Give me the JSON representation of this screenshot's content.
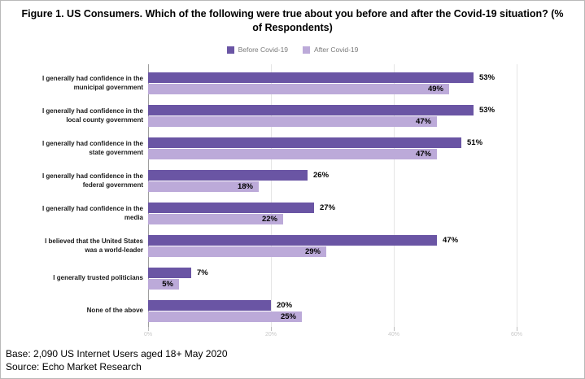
{
  "figure": {
    "title": "Figure 1. US Consumers. Which of the following were true about you before and after the Covid-19 situation? (% of Respondents)",
    "footer_base": "Base: 2,090 US Internet Users aged 18+ May 2020",
    "footer_source": "Source: Echo Market Research"
  },
  "legend": {
    "before_label": "Before Covid-19",
    "after_label": "After Covid-19"
  },
  "colors": {
    "before": "#6a55a4",
    "after": "#bcaad9",
    "axis": "#9d9d9d",
    "gridline": "#e5e5e5",
    "tick_label": "#c9c9c9"
  },
  "chart_data": {
    "type": "bar",
    "orientation": "horizontal",
    "title": "Figure 1. US Consumers. Which of the following were true about you before and after the Covid-19 situation? (% of Respondents)",
    "categories": [
      "I generally had confidence in the municipal government",
      "I generally had confidence in the local county government",
      "I generally had confidence in the state government",
      "I generally had confidence in the federal government",
      "I generally had confidence in the media",
      "I believed that the United States was a world-leader",
      "I generally trusted politicians",
      "None of the above"
    ],
    "category_lines": [
      [
        "I generally had confidence in the",
        "municipal government"
      ],
      [
        "I generally had confidence in the",
        "local county government"
      ],
      [
        "I generally had confidence in the",
        "state government"
      ],
      [
        "I generally had confidence in the",
        "federal government"
      ],
      [
        "I generally had confidence in the",
        "media"
      ],
      [
        "I believed that the United States",
        "was a world-leader"
      ],
      [
        "I generally trusted politicians"
      ],
      [
        "None of the above"
      ]
    ],
    "series": [
      {
        "name": "Before Covid-19",
        "color": "#6a55a4",
        "values": [
          53,
          53,
          51,
          26,
          27,
          47,
          7,
          20
        ]
      },
      {
        "name": "After Covid-19",
        "color": "#bcaad9",
        "values": [
          49,
          47,
          47,
          18,
          22,
          29,
          5,
          25
        ]
      }
    ],
    "x_ticks": [
      0,
      20,
      40,
      60
    ],
    "x_tick_labels": [
      "0%",
      "20%",
      "40%",
      "60%"
    ],
    "xlim": [
      0,
      65
    ],
    "value_suffix": "%",
    "grid": "vertical",
    "legend_position": "top",
    "xlabel": "",
    "ylabel": ""
  }
}
